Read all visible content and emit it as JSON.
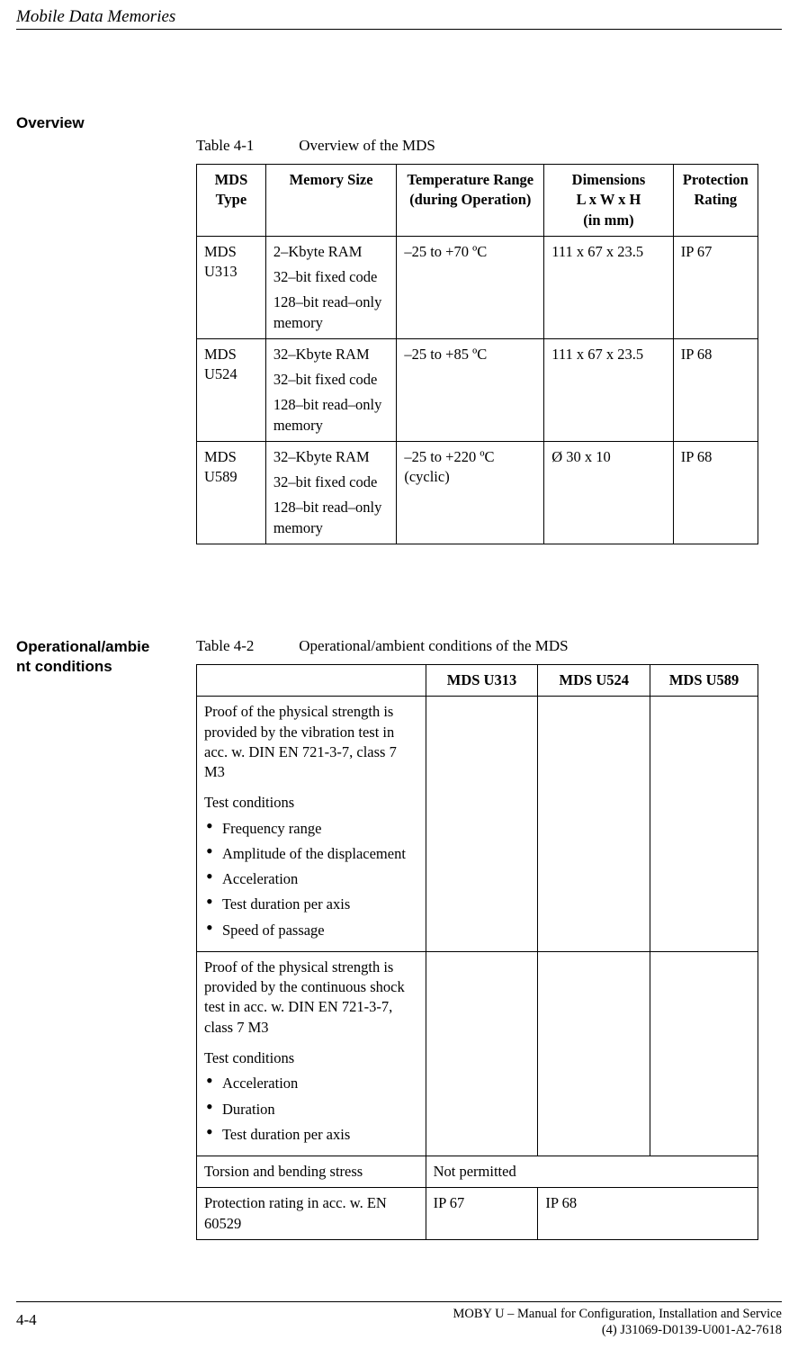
{
  "header": {
    "title": "Mobile Data Memories"
  },
  "sections": {
    "overview_heading": "Overview",
    "opcond_heading": "Operational/ambie\nnt conditions"
  },
  "table1": {
    "caption_num": "Table 4-1",
    "caption_text": "Overview of the MDS",
    "headers": {
      "c1a": "MDS",
      "c1b": "Type",
      "c2": "Memory Size",
      "c3a": "Temperature Range",
      "c3b": "(during Operation)",
      "c4a": "Dimensions",
      "c4b": "L x W x H",
      "c4c": "(in mm)",
      "c5a": "Protection",
      "c5b": "Rating"
    },
    "rows": [
      {
        "type_l1": "MDS",
        "type_l2": "U313",
        "mem1": "2–Kbyte RAM",
        "mem2": "32–bit fixed code",
        "mem3": "128–bit read–only memory",
        "temp": "–25 to +70 ºC",
        "dim": "111 x 67 x 23.5",
        "prot": "IP 67"
      },
      {
        "type_l1": "MDS",
        "type_l2": "U524",
        "mem1": "32–Kbyte RAM",
        "mem2": "32–bit fixed code",
        "mem3": "128–bit read–only memory",
        "temp": "–25 to +85 ºC",
        "dim": "111 x 67 x 23.5",
        "prot": "IP 68"
      },
      {
        "type_l1": "MDS",
        "type_l2": "U589",
        "mem1": "32–Kbyte RAM",
        "mem2": "32–bit fixed code",
        "mem3": "128–bit read–only memory",
        "temp": "–25 to +220 ºC (cyclic)",
        "dim": "Ø 30 x 10",
        "prot": "IP 68"
      }
    ]
  },
  "table2": {
    "caption_num": "Table 4-2",
    "caption_text": "Operational/ambient conditions of the MDS",
    "headers": {
      "c2": "MDS U313",
      "c3": "MDS U524",
      "c4": "MDS U589"
    },
    "row_vibration": {
      "intro": "Proof of the physical strength is provided by the vibration test in acc. w. DIN EN 721-3-7, class 7 M3",
      "tcond": "Test conditions",
      "items": [
        "Frequency range",
        "Amplitude of the dis­placement",
        "Acceleration",
        "Test duration per axis",
        "Speed of passage"
      ]
    },
    "row_shock": {
      "intro": "Proof of the physical strength is provided by the continuous shock test in acc. w. DIN EN 721-3-7, class 7 M3",
      "tcond": "Test conditions",
      "items": [
        "Acceleration",
        "Duration",
        "Test duration per axis"
      ]
    },
    "row_torsion": {
      "label": "Torsion and bending stress",
      "val": "Not permitted"
    },
    "row_protection": {
      "label": "Protection rating in acc. w. EN 60529",
      "v1": "IP 67",
      "v2": "IP 68"
    }
  },
  "footer": {
    "page": "4-4",
    "line1": "MOBY U – Manual for Configuration, Installation and Service",
    "line2": "(4) J31069-D0139-U001-A2-7618"
  }
}
